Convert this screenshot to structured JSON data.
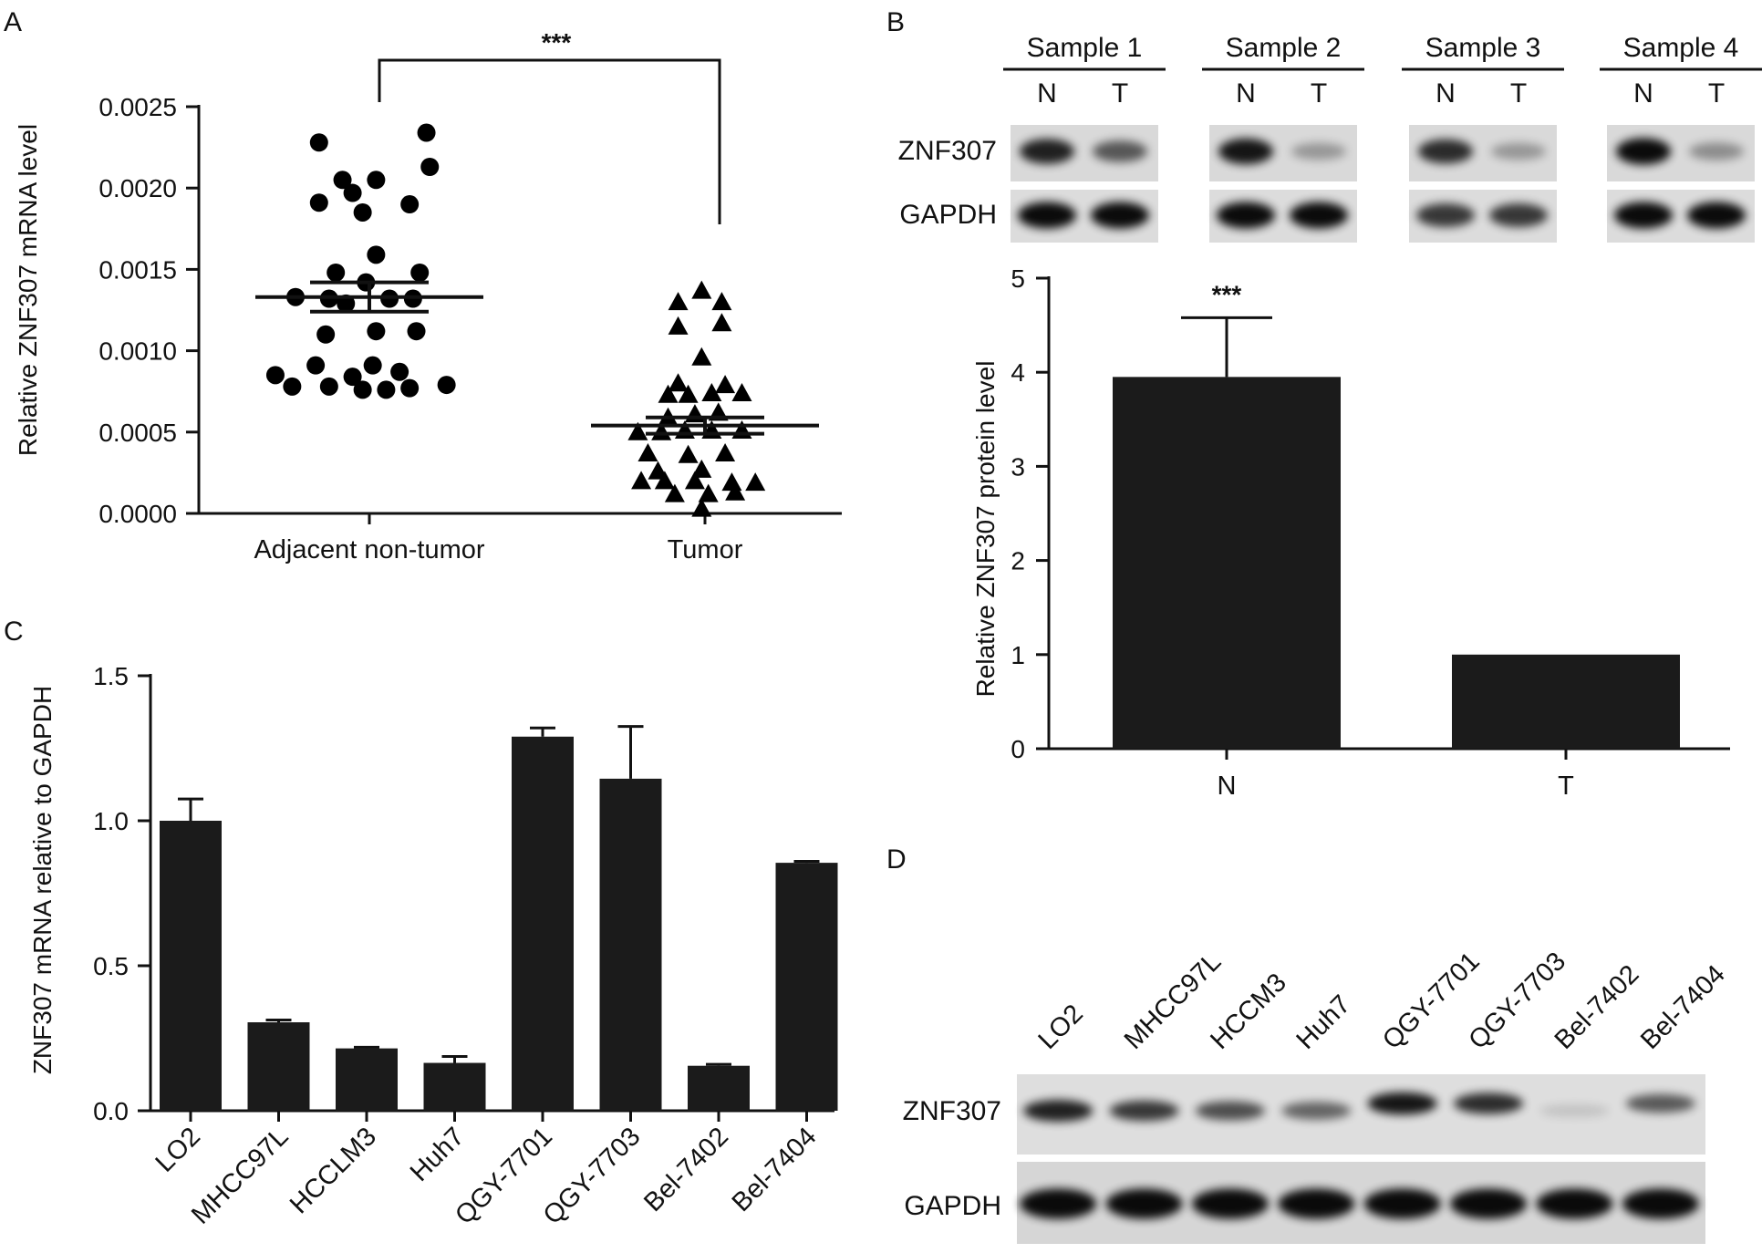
{
  "panels": {
    "A": {
      "letter": "A",
      "significance": "***",
      "chart_data": {
        "type": "scatter",
        "title": "",
        "xlabel": "",
        "ylabel": "Relative ZNF307 mRNA level",
        "ylim": [
          0,
          0.0025
        ],
        "yticks": [
          "0.0000",
          "0.0005",
          "0.0010",
          "0.0015",
          "0.0020",
          "0.0025"
        ],
        "categories": [
          "Adjacent non-tumor",
          "Tumor"
        ],
        "grid": false,
        "series": [
          {
            "category": "Adjacent non-tumor",
            "marker": "circle",
            "mean": 0.00133,
            "sem": 9e-05,
            "points": [
              {
                "x": 0.85,
                "y": 0.00228
              },
              {
                "x": 1.17,
                "y": 0.00234
              },
              {
                "x": 0.92,
                "y": 0.00205
              },
              {
                "x": 1.02,
                "y": 0.00205
              },
              {
                "x": 1.18,
                "y": 0.00213
              },
              {
                "x": 0.95,
                "y": 0.00197
              },
              {
                "x": 0.85,
                "y": 0.00191
              },
              {
                "x": 1.12,
                "y": 0.0019
              },
              {
                "x": 0.98,
                "y": 0.00185
              },
              {
                "x": 1.02,
                "y": 0.00159
              },
              {
                "x": 0.9,
                "y": 0.00148
              },
              {
                "x": 1.15,
                "y": 0.00148
              },
              {
                "x": 0.99,
                "y": 0.00142
              },
              {
                "x": 0.78,
                "y": 0.00133
              },
              {
                "x": 0.88,
                "y": 0.00132
              },
              {
                "x": 0.93,
                "y": 0.00129
              },
              {
                "x": 1.06,
                "y": 0.00132
              },
              {
                "x": 1.13,
                "y": 0.00132
              },
              {
                "x": 0.87,
                "y": 0.0011
              },
              {
                "x": 1.02,
                "y": 0.00112
              },
              {
                "x": 1.14,
                "y": 0.00112
              },
              {
                "x": 0.84,
                "y": 0.00091
              },
              {
                "x": 1.01,
                "y": 0.00091
              },
              {
                "x": 1.09,
                "y": 0.00087
              },
              {
                "x": 0.72,
                "y": 0.00085
              },
              {
                "x": 0.95,
                "y": 0.00084
              },
              {
                "x": 0.77,
                "y": 0.00078
              },
              {
                "x": 0.88,
                "y": 0.00078
              },
              {
                "x": 0.98,
                "y": 0.00076
              },
              {
                "x": 1.05,
                "y": 0.00076
              },
              {
                "x": 1.12,
                "y": 0.00077
              },
              {
                "x": 1.23,
                "y": 0.00079
              }
            ]
          },
          {
            "category": "Tumor",
            "marker": "triangle",
            "mean": 0.00054,
            "sem": 5e-05,
            "points": [
              {
                "x": 1.99,
                "y": 0.00137
              },
              {
                "x": 1.92,
                "y": 0.0013
              },
              {
                "x": 2.05,
                "y": 0.0013
              },
              {
                "x": 1.92,
                "y": 0.00115
              },
              {
                "x": 2.05,
                "y": 0.00117
              },
              {
                "x": 1.99,
                "y": 0.00096
              },
              {
                "x": 1.92,
                "y": 0.0008
              },
              {
                "x": 2.06,
                "y": 0.00079
              },
              {
                "x": 1.89,
                "y": 0.00073
              },
              {
                "x": 1.95,
                "y": 0.00073
              },
              {
                "x": 2.02,
                "y": 0.00074
              },
              {
                "x": 2.11,
                "y": 0.00074
              },
              {
                "x": 1.89,
                "y": 0.00059
              },
              {
                "x": 1.97,
                "y": 0.00061
              },
              {
                "x": 2.04,
                "y": 0.00062
              },
              {
                "x": 1.8,
                "y": 0.0005
              },
              {
                "x": 1.87,
                "y": 0.0005
              },
              {
                "x": 1.94,
                "y": 0.00051
              },
              {
                "x": 2.02,
                "y": 0.00051
              },
              {
                "x": 2.11,
                "y": 0.00051
              },
              {
                "x": 1.83,
                "y": 0.00037
              },
              {
                "x": 1.95,
                "y": 0.00036
              },
              {
                "x": 2.06,
                "y": 0.00037
              },
              {
                "x": 1.86,
                "y": 0.00026
              },
              {
                "x": 1.99,
                "y": 0.00027
              },
              {
                "x": 1.81,
                "y": 0.0002
              },
              {
                "x": 1.88,
                "y": 0.0002
              },
              {
                "x": 1.97,
                "y": 0.0002
              },
              {
                "x": 2.08,
                "y": 0.00019
              },
              {
                "x": 2.15,
                "y": 0.00019
              },
              {
                "x": 1.91,
                "y": 0.00012
              },
              {
                "x": 2.01,
                "y": 0.00012
              },
              {
                "x": 2.09,
                "y": 0.00013
              },
              {
                "x": 1.99,
                "y": 3e-05
              }
            ]
          }
        ]
      }
    },
    "B": {
      "letter": "B",
      "blot": {
        "samples": [
          {
            "label": "Sample 1",
            "lanes": [
              "N",
              "T"
            ],
            "znf": [
              0.85,
              0.6
            ],
            "gapdh": [
              0.95,
              0.95
            ]
          },
          {
            "label": "Sample 2",
            "lanes": [
              "N",
              "T"
            ],
            "znf": [
              0.9,
              0.3
            ],
            "gapdh": [
              0.95,
              0.95
            ]
          },
          {
            "label": "Sample 3",
            "lanes": [
              "N",
              "T"
            ],
            "znf": [
              0.8,
              0.3
            ],
            "gapdh": [
              0.75,
              0.75
            ]
          },
          {
            "label": "Sample 4",
            "lanes": [
              "N",
              "T"
            ],
            "znf": [
              0.95,
              0.35
            ],
            "gapdh": [
              0.95,
              0.95
            ]
          }
        ],
        "rows": [
          "ZNF307",
          "GAPDH"
        ]
      },
      "significance": "***",
      "chart_data": {
        "type": "bar",
        "title": "",
        "xlabel": "",
        "ylabel": "Relative ZNF307 protein level",
        "categories": [
          "N",
          "T"
        ],
        "values": [
          3.95,
          1.0
        ],
        "errors": [
          0.63,
          0
        ],
        "ylim": [
          0,
          5
        ],
        "yticks": [
          "0",
          "1",
          "2",
          "3",
          "4",
          "5"
        ],
        "grid": false
      }
    },
    "C": {
      "letter": "C",
      "chart_data": {
        "type": "bar",
        "title": "",
        "xlabel": "",
        "ylabel": "ZNF307 mRNA relative  to GAPDH",
        "categories": [
          "LO2",
          "MHCC97L",
          "HCCLM3",
          "Huh7",
          "QGY-7701",
          "QGY-7703",
          "Bel-7402",
          "Bel-7404"
        ],
        "values": [
          1.0,
          0.305,
          0.215,
          0.165,
          1.29,
          1.145,
          0.155,
          0.855
        ],
        "errors": [
          0.075,
          0.008,
          0.004,
          0.022,
          0.03,
          0.18,
          0.005,
          0.005
        ],
        "ylim": [
          0,
          1.5
        ],
        "yticks": [
          "0.0",
          "0.5",
          "1.0",
          "1.5"
        ],
        "grid": false
      }
    },
    "D": {
      "letter": "D",
      "blot": {
        "lanes": [
          "LO2",
          "MHCC97L",
          "HCCM3",
          "Huh7",
          "QGY-7701",
          "QGY-7703",
          "Bel-7402",
          "Bel-7404"
        ],
        "rows": [
          "ZNF307",
          "GAPDH"
        ],
        "znf": [
          0.85,
          0.75,
          0.65,
          0.55,
          0.9,
          0.8,
          0.12,
          0.6
        ],
        "gapdh": [
          0.95,
          0.95,
          0.95,
          0.95,
          0.95,
          0.95,
          0.95,
          0.95
        ]
      }
    }
  }
}
